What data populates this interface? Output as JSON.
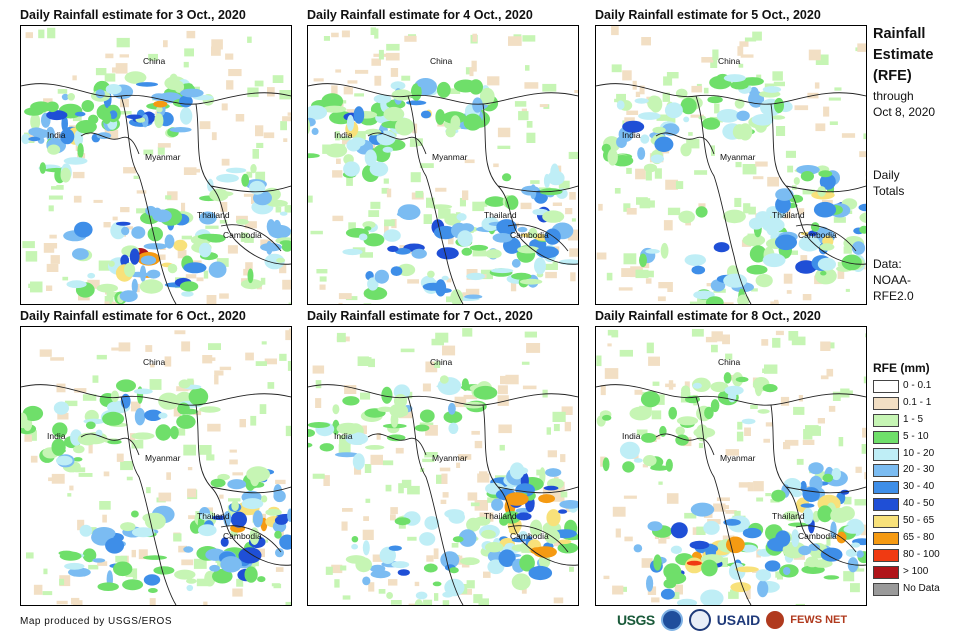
{
  "panels": [
    {
      "title": "Daily Rainfall estimate for 3 Oct., 2020",
      "intensity": [
        0.55,
        0.6,
        0.75,
        0.4
      ]
    },
    {
      "title": "Daily Rainfall estimate for 4 Oct., 2020",
      "intensity": [
        0.5,
        0.55,
        0.65,
        0.55
      ]
    },
    {
      "title": "Daily Rainfall estimate for 5 Oct., 2020",
      "intensity": [
        0.35,
        0.4,
        0.4,
        0.75
      ]
    },
    {
      "title": "Daily Rainfall estimate for 6 Oct., 2020",
      "intensity": [
        0.25,
        0.3,
        0.45,
        0.85
      ]
    },
    {
      "title": "Daily Rainfall estimate for 7 Oct., 2020",
      "intensity": [
        0.15,
        0.25,
        0.55,
        0.95
      ]
    },
    {
      "title": "Daily Rainfall estimate for 8 Oct., 2020",
      "intensity": [
        0.15,
        0.2,
        0.85,
        0.8
      ]
    }
  ],
  "map_labels": {
    "china": "China",
    "india": "India",
    "myanmar": "Myanmar",
    "thailand": "Thailand",
    "cambodia": "Cambodia"
  },
  "side": {
    "title_line1": "Rainfall",
    "title_line2": "Estimate",
    "title_line3": "(RFE)",
    "through": "through",
    "through_date": "Oct 8, 2020",
    "daily_line1": "Daily",
    "daily_line2": "Totals",
    "data_line1": "Data:",
    "data_line2": "NOAA-",
    "data_line3": "RFE2.0"
  },
  "legend": {
    "title": "RFE (mm)",
    "items": [
      {
        "label": "0 - 0.1",
        "color": "#ffffff"
      },
      {
        "label": "0.1 - 1",
        "color": "#f2dfc4"
      },
      {
        "label": "1 - 5",
        "color": "#c6f5b4"
      },
      {
        "label": "5 - 10",
        "color": "#6fdf6a"
      },
      {
        "label": "10 - 20",
        "color": "#bfeef6"
      },
      {
        "label": "20 - 30",
        "color": "#7bbcf2"
      },
      {
        "label": "30 - 40",
        "color": "#3e8ee8"
      },
      {
        "label": "40 - 50",
        "color": "#1f4fd6"
      },
      {
        "label": "50 - 65",
        "color": "#f8e17a"
      },
      {
        "label": "65 - 80",
        "color": "#f59a12"
      },
      {
        "label": "80 - 100",
        "color": "#f03a12"
      },
      {
        "label": "> 100",
        "color": "#b0141a"
      },
      {
        "label": "No Data",
        "color": "#9a9a9a"
      }
    ]
  },
  "footer": {
    "credit": "Map produced by USGS/EROS"
  },
  "logos": {
    "usgs": "USGS",
    "usaid": "USAID",
    "fews": "FEWS NET"
  }
}
